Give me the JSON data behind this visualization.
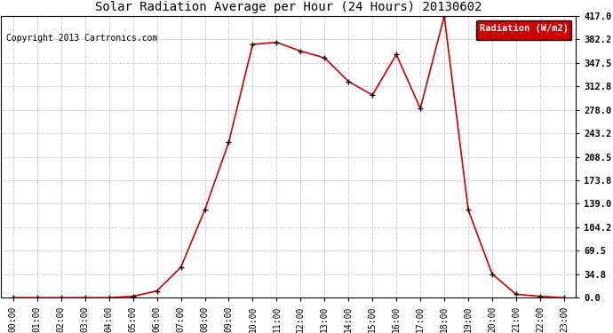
{
  "title": "Solar Radiation Average per Hour (24 Hours) 20130602",
  "copyright": "Copyright 2013 Cartronics.com",
  "legend_label": "Radiation (W/m2)",
  "hours": [
    "00:00",
    "01:00",
    "02:00",
    "03:00",
    "04:00",
    "05:00",
    "06:00",
    "07:00",
    "08:00",
    "09:00",
    "10:00",
    "11:00",
    "12:00",
    "13:00",
    "14:00",
    "15:00",
    "16:00",
    "17:00",
    "18:00",
    "19:00",
    "20:00",
    "21:00",
    "22:00",
    "23:00"
  ],
  "values": [
    0.0,
    0.0,
    0.0,
    0.0,
    0.0,
    2.0,
    10.0,
    45.0,
    130.0,
    230.0,
    375.0,
    378.0,
    365.0,
    355.0,
    320.0,
    300.0,
    360.0,
    280.0,
    417.0,
    130.0,
    35.0,
    5.0,
    2.0,
    0.0
  ],
  "line_color": "#cc0000",
  "marker_color": "#000000",
  "bg_color": "#ffffff",
  "grid_color": "#c8c8c8",
  "yticks": [
    0.0,
    34.8,
    69.5,
    104.2,
    139.0,
    173.8,
    208.5,
    243.2,
    278.0,
    312.8,
    347.5,
    382.2,
    417.0
  ],
  "ymax": 417.0,
  "ymin": 0.0,
  "legend_bg": "#cc0000",
  "legend_text_color": "#ffffff",
  "title_fontsize": 10,
  "copyright_fontsize": 7,
  "tick_fontsize": 7,
  "ytick_fontsize": 7.5
}
